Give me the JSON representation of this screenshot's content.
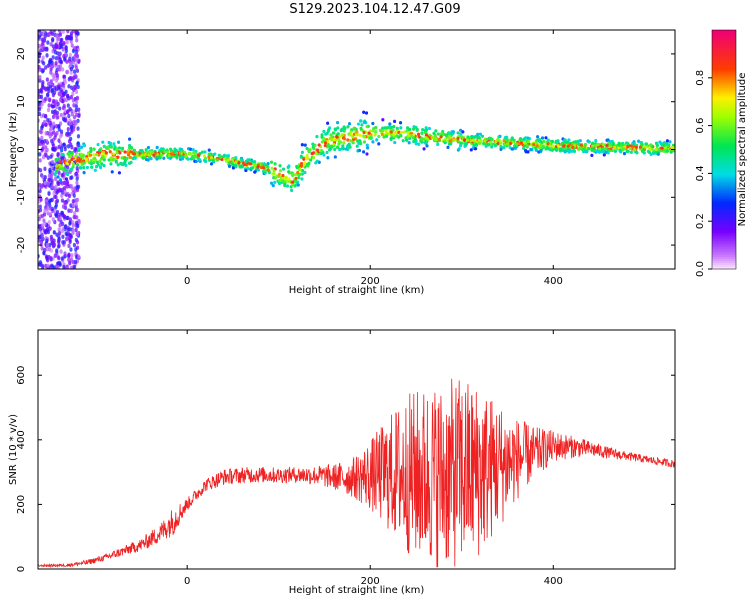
{
  "title": "S129.2023.104.12.47.G09",
  "chart_data": [
    {
      "type": "heatmap",
      "title": "S129.2023.104.12.47.G09",
      "xlabel": "Height of straight line (km)",
      "ylabel": "Frequency (Hz)",
      "xlim": [
        -163,
        533
      ],
      "ylim": [
        -25,
        25
      ],
      "xticks": [
        0,
        200,
        400
      ],
      "yticks": [
        -20,
        -10,
        0,
        10,
        20
      ],
      "grid": false,
      "colorbar": {
        "label": "Normalized spectral amplitude",
        "ticks": [
          0.0,
          0.2,
          0.4,
          0.6,
          0.8
        ],
        "range": [
          0,
          1
        ]
      },
      "ridge": {
        "x": [
          -140,
          -120,
          -90,
          -60,
          -40,
          -20,
          0,
          20,
          40,
          60,
          80,
          100,
          115,
          130,
          150,
          170,
          190,
          210,
          230,
          260,
          300,
          350,
          400,
          450,
          500,
          533
        ],
        "y": [
          -3,
          -2,
          -1,
          -1,
          -1,
          -0.8,
          -1,
          -1.5,
          -2,
          -3,
          -3.5,
          -5,
          -6.5,
          -2,
          1.5,
          2.5,
          3.2,
          3.5,
          3.5,
          2.8,
          2,
          1.5,
          0.8,
          0.6,
          0.3,
          0.2
        ]
      }
    },
    {
      "type": "line",
      "xlabel": "Height of straight line (km)",
      "ylabel": "SNR (10 * v/v)",
      "xlim": [
        -163,
        533
      ],
      "ylim": [
        0,
        740
      ],
      "xticks": [
        0,
        200,
        400
      ],
      "yticks": [
        0,
        200,
        400,
        600
      ],
      "grid": false,
      "series_color": "#ee2222",
      "envelope": {
        "x": [
          -163,
          -130,
          -110,
          -90,
          -70,
          -50,
          -30,
          -15,
          0,
          20,
          40,
          60,
          80,
          100,
          120,
          140,
          160,
          180,
          200,
          220,
          240,
          260,
          280,
          300,
          320,
          340,
          360,
          380,
          400,
          420,
          440,
          460,
          480,
          500,
          533
        ],
        "mean": [
          10,
          12,
          20,
          35,
          55,
          75,
          110,
          150,
          200,
          260,
          285,
          290,
          292,
          290,
          292,
          290,
          285,
          282,
          290,
          295,
          295,
          290,
          290,
          300,
          305,
          320,
          340,
          360,
          380,
          378,
          372,
          360,
          350,
          340,
          325
        ],
        "amp": [
          3,
          5,
          8,
          10,
          15,
          20,
          30,
          45,
          20,
          20,
          25,
          25,
          25,
          25,
          25,
          30,
          40,
          60,
          110,
          180,
          250,
          280,
          290,
          300,
          270,
          200,
          130,
          80,
          50,
          35,
          25,
          18,
          14,
          12,
          12
        ]
      }
    }
  ]
}
